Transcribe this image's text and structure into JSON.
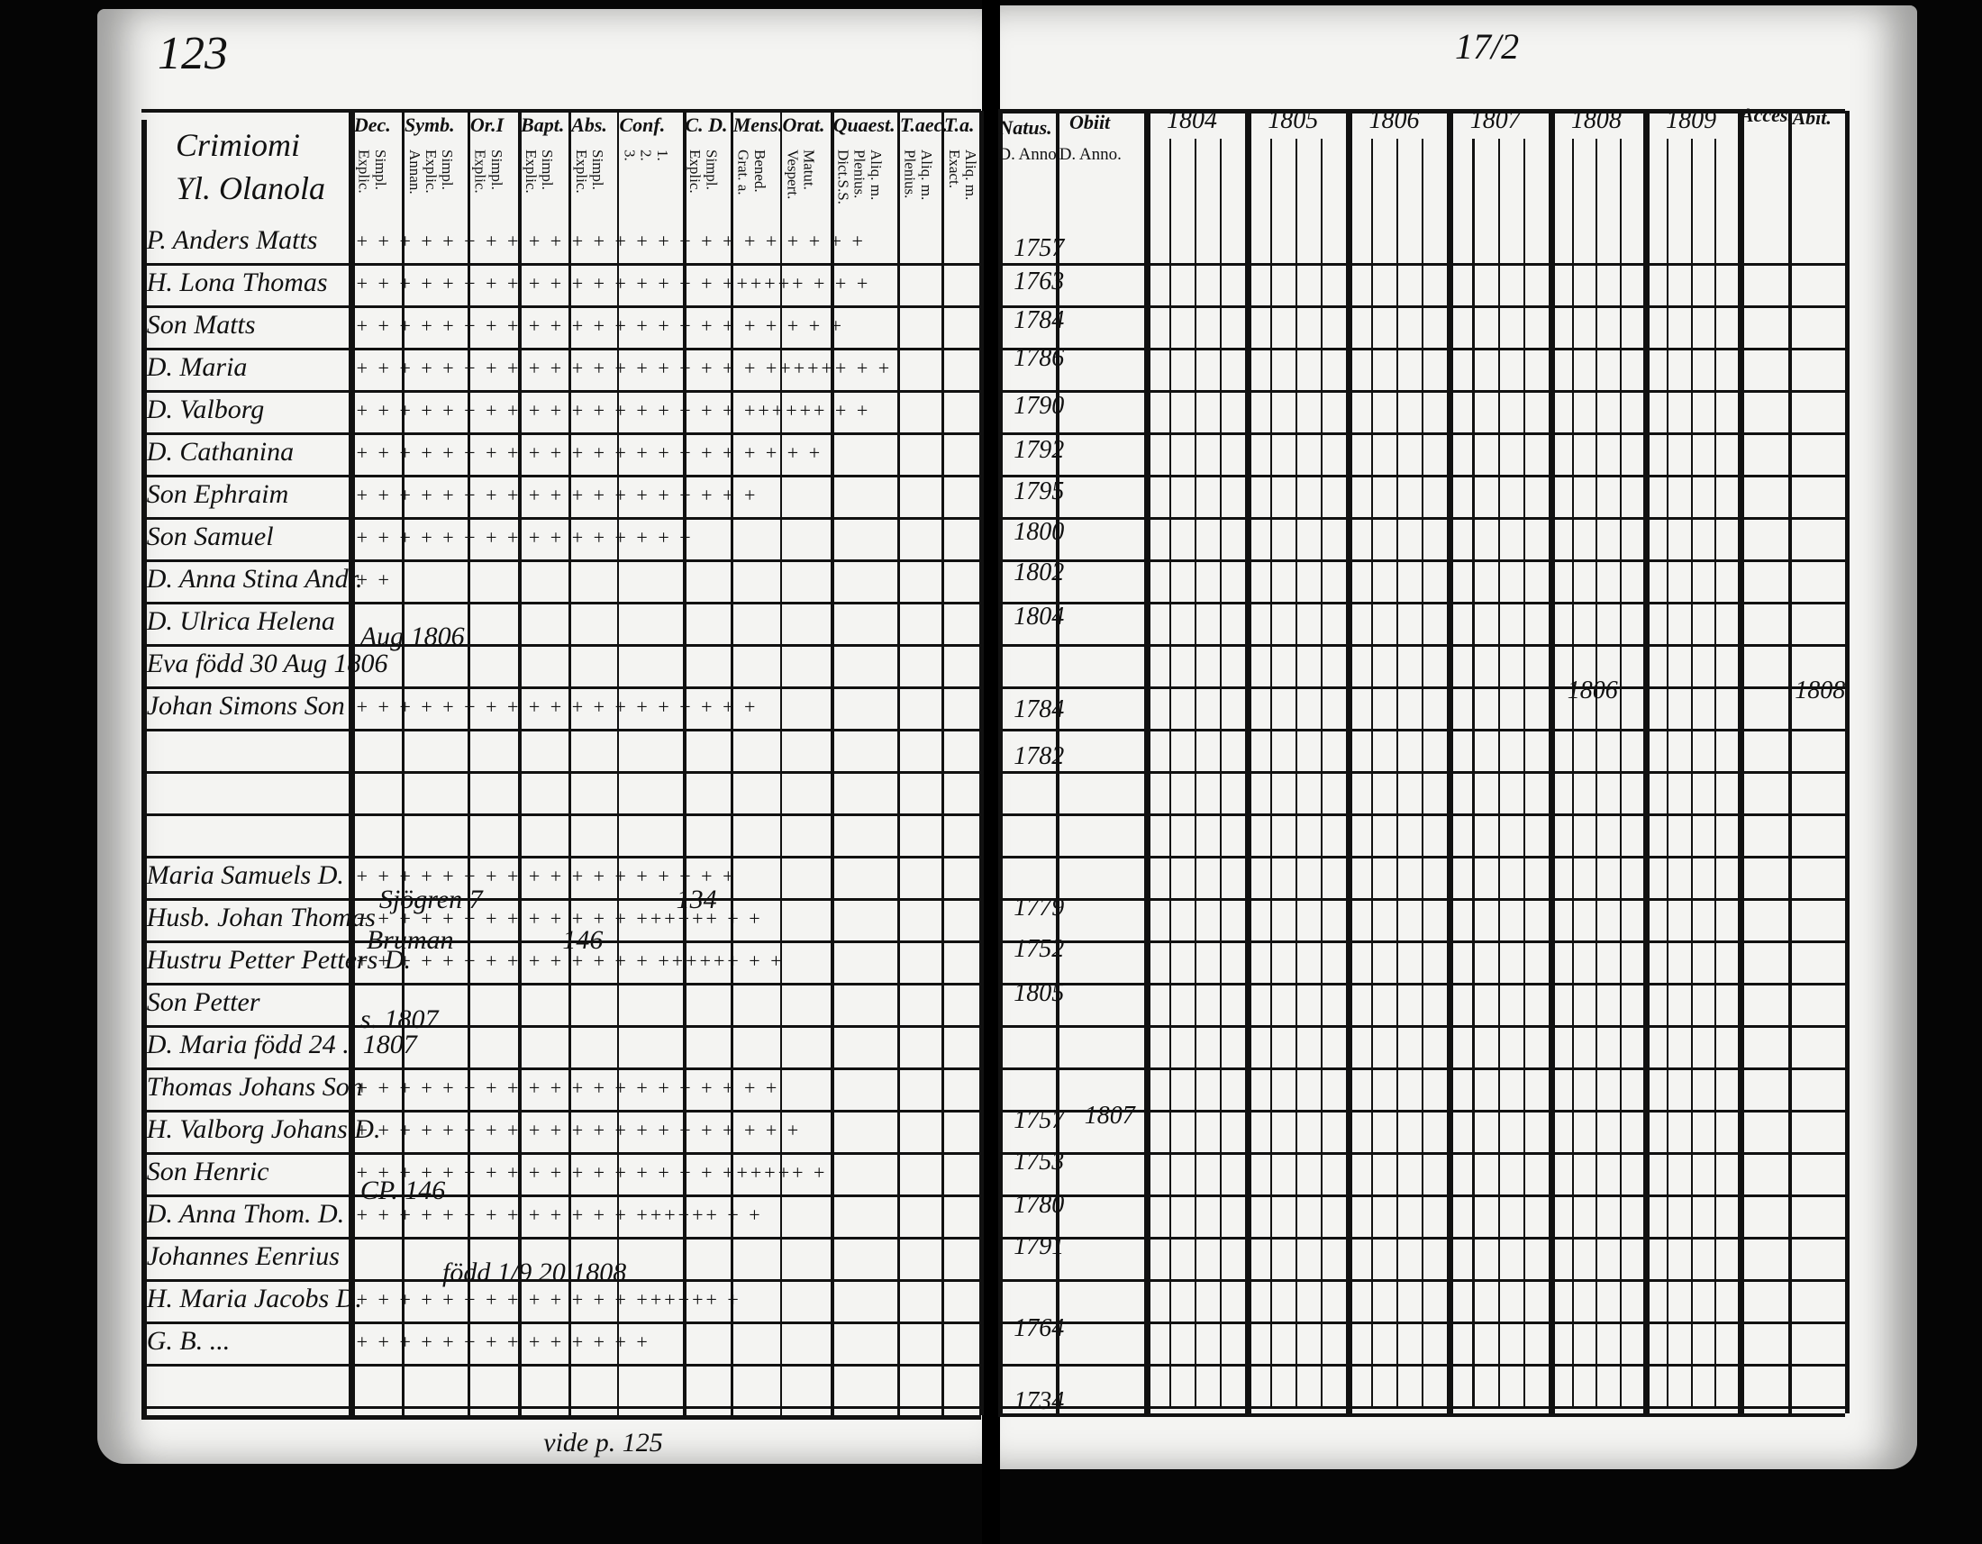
{
  "left_page": {
    "page_number": "123",
    "title_lines": [
      "Crimiomi",
      "Yl. Olanola"
    ],
    "column_headers": [
      {
        "label": "Dec.",
        "sub": [
          "Explic.",
          "Simpl."
        ]
      },
      {
        "label": "Symb.",
        "sub": [
          "Annan.",
          "Explic.",
          "Simpl."
        ]
      },
      {
        "label": "Or.I",
        "sub": [
          "Explic.",
          "Simpl."
        ]
      },
      {
        "label": "Bapt.",
        "sub": [
          "Explic.",
          "Simpl."
        ]
      },
      {
        "label": "Abs.",
        "sub": [
          "Explic.",
          "Simpl."
        ]
      },
      {
        "label": "Conf.",
        "sub": [
          "3.",
          "2.",
          "1."
        ]
      },
      {
        "label": "C. D.",
        "sub": [
          "Explic.",
          "Simpl."
        ]
      },
      {
        "label": "Mens.",
        "sub": [
          "Grat. a.",
          "Bened."
        ]
      },
      {
        "label": "Orat.",
        "sub": [
          "Vespert.",
          "Matut."
        ]
      },
      {
        "label": "Quaest.",
        "sub": [
          "Dict.S.S.",
          "Plenius.",
          "Aliq. m."
        ]
      },
      {
        "label": "T.aec.",
        "sub": [
          "Plenius.",
          "Aliq. m."
        ]
      },
      {
        "label": "T.a.",
        "sub": [
          "Exact.",
          "Aliq. m."
        ]
      }
    ],
    "rows": [
      {
        "name": "P. Anders Matts",
        "marks": "+ +  + + + +  + +  + + +  + +  + + + +  + + + +  + + +"
      },
      {
        "name": "H. Lona Thomas",
        "marks": "+ +  + + + +  + +  + + +  + +  + + + +  ++++++  + +  +"
      },
      {
        "name": "Son Matts",
        "marks": "+ +  + + +  + +  + + +  + + +  + + + + +  + + +  + +"
      },
      {
        "name": "D. Maria",
        "marks": "+ +  + + +  + + +  + + +  + + +  + + + + +  ++++++  + +"
      },
      {
        "name": "D. Valborg",
        "marks": "+ +  + + + +  + + +  + + +  + + + +  + +  ++++++  + +"
      },
      {
        "name": "D. Cathanina",
        "marks": "+ +  + + +  + +  + + + +  + + +  + + +  + + + +  +"
      },
      {
        "name": "Son Ephraim",
        "marks": "+ +  + +  + +  + + +  + + +  + +  + + +  + +"
      },
      {
        "name": "Son Samuel",
        "marks": "+ +  + +  + +  + + +  + + +  + + + +"
      },
      {
        "name": "D. Anna Stina Andr.",
        "marks": "+ +"
      },
      {
        "name": "D. Ulrica Helena",
        "marks": ""
      },
      {
        "name": "Eva  född 30 Aug 1806",
        "marks": ""
      },
      {
        "name": "Johan Simons Son",
        "marks": "+ +  + +  + + + +  + +  + + +  + + +  + + +"
      },
      {
        "name": "Maria Samuels D.",
        "marks": "+ +  + + +  + + +  + + +  + + +  + + + +"
      },
      {
        "name": "Husb. Johan Thomas",
        "marks": "+ +  + + + +  + + +  + + + +  ++++++  + +"
      },
      {
        "name": "Hustru Petter Petters D.",
        "marks": "+ + + +  + + +  + + + +  + + +  ++++++  + +"
      },
      {
        "name": "Son Petter",
        "marks": ""
      },
      {
        "name": "D. Maria  född 24 .. 1807",
        "marks": ""
      },
      {
        "name": "Thomas Johans Son",
        "marks": "+ + + +  + + + +  + + + +  + + + + +  + + +"
      },
      {
        "name": "H. Valborg Johans D.",
        "marks": "+ + + +  + + + + +  + + + + +  + + + + +  + +"
      },
      {
        "name": "Son Henric",
        "marks": "+ + + +  + + + +  + + + +  + + + + +  ++++++ +"
      },
      {
        "name": "D. Anna Thom. D.",
        "marks": "+ + + +  + + + + +  + + + +  ++++++  + +"
      },
      {
        "name": "Johannes Eenrius",
        "marks": ""
      },
      {
        "name": "H. Maria Jacobs D.",
        "marks": "+ + + +  + + + + +  + + + +  ++++++  +"
      },
      {
        "name": "G. B. ...",
        "marks": "+ + + +  + + + +  + + + +  +  +"
      }
    ],
    "annotations": [
      "Aug 1806",
      "Sjögren  7",
      "Bruman",
      "146",
      "134",
      "CP. 146",
      "s. 1807",
      "född 1/9 20 1808",
      "vide p. 125"
    ]
  },
  "right_page": {
    "page_number": "17/2",
    "column_headers": {
      "natus": "Natus.",
      "natus_sub": "D. Anno.",
      "obiit": "Obiit",
      "obiit_sub": "D. Anno.",
      "years": [
        "1804",
        "1805",
        "1806",
        "1807",
        "1808",
        "1809"
      ],
      "acces": "Acces.",
      "abit": "Abit."
    },
    "birth_years": [
      "1757",
      "1763",
      "1784",
      "1786",
      "1790",
      "1792",
      "1795",
      "1800",
      "1802",
      "1804",
      "1784",
      "1782",
      "1779",
      "1752",
      "1805",
      "1757",
      "1753",
      "1780",
      "1791",
      "1764",
      "1734"
    ],
    "obiit_entries": [
      "1807"
    ],
    "annotations": [
      "1808",
      "1806"
    ]
  }
}
